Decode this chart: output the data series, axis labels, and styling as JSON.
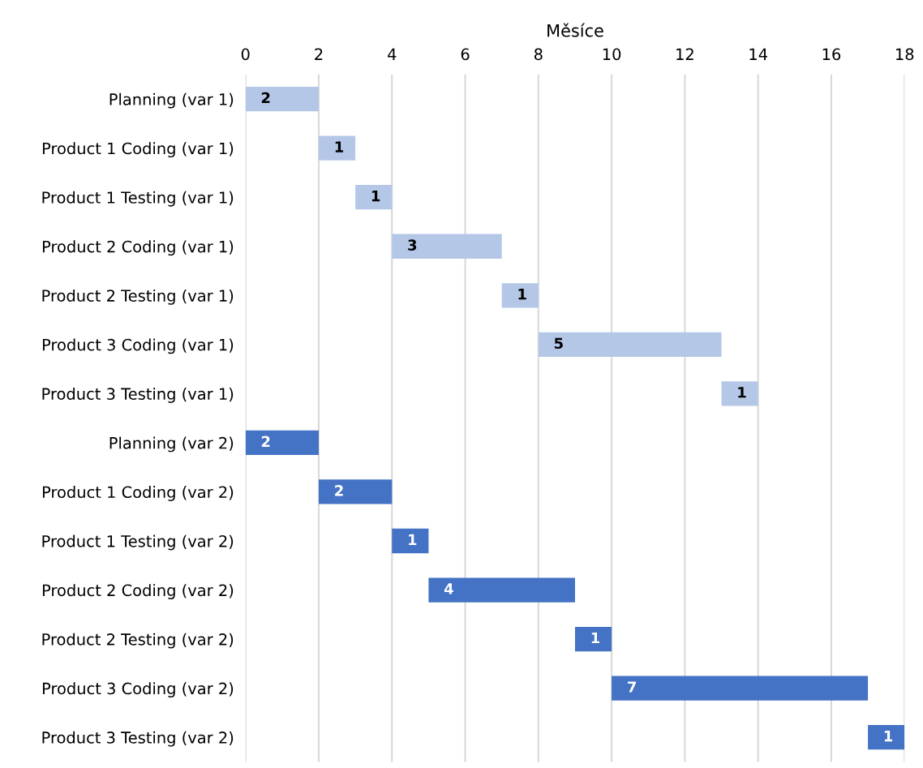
{
  "chart_data": {
    "type": "bar",
    "orientation": "horizontal",
    "xlabel": "Měsíce",
    "categories": [
      "Planning (var 1)",
      "Product 1 Coding (var 1)",
      "Product 1 Testing (var 1)",
      "Product 2 Coding (var 1)",
      "Product 2 Testing (var 1)",
      "Product 3 Coding (var 1)",
      "Product 3 Testing (var 1)",
      "Planning (var 2)",
      "Product 1 Coding (var 2)",
      "Product 1 Testing (var 2)",
      "Product 2 Coding (var 2)",
      "Product 2 Testing (var 2)",
      "Product 3 Coding (var 2)",
      "Product 3 Testing (var 2)"
    ],
    "base": [
      0,
      2,
      3,
      4,
      7,
      8,
      13,
      0,
      2,
      4,
      5,
      9,
      10,
      17
    ],
    "values": [
      2,
      1,
      1,
      3,
      1,
      5,
      1,
      2,
      2,
      1,
      4,
      1,
      7,
      1
    ],
    "colors": [
      "#b4c7e7",
      "#b4c7e7",
      "#b4c7e7",
      "#b4c7e7",
      "#b4c7e7",
      "#b4c7e7",
      "#b4c7e7",
      "#4472c4",
      "#4472c4",
      "#4472c4",
      "#4472c4",
      "#4472c4",
      "#4472c4",
      "#4472c4"
    ],
    "xlim": [
      0,
      18
    ],
    "xticks": [
      0,
      2,
      4,
      6,
      8,
      10,
      12,
      14,
      16,
      18
    ],
    "grid": "x",
    "data_labels": true,
    "legend": false
  }
}
